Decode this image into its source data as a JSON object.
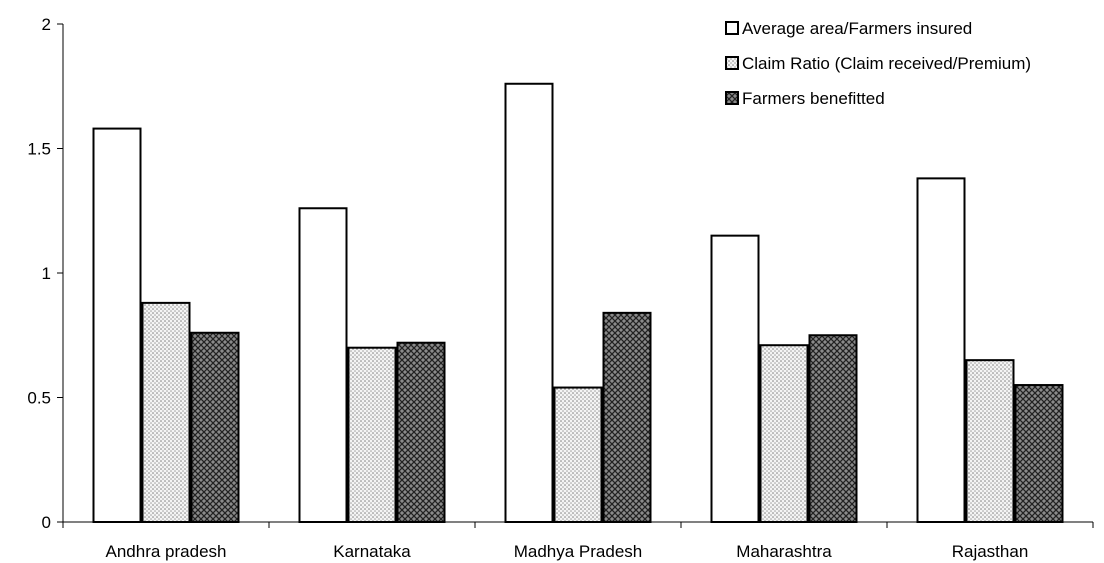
{
  "chart_data": {
    "type": "bar",
    "title": "",
    "xlabel": "",
    "ylabel": "",
    "ylim": [
      0,
      2
    ],
    "yticks": [
      "0",
      "0.5",
      "1",
      "1.5",
      "2"
    ],
    "grid": false,
    "legend_position": "top-right",
    "categories": [
      "Andhra pradesh",
      "Karnataka",
      "Madhya Pradesh",
      "Maharashtra",
      "Rajasthan"
    ],
    "series": [
      {
        "name": "Average area/Farmers insured",
        "pattern": "white",
        "values": [
          1.58,
          1.26,
          1.76,
          1.15,
          1.38
        ]
      },
      {
        "name": "Claim Ratio (Claim received/Premium)",
        "pattern": "dots",
        "values": [
          0.88,
          0.7,
          0.54,
          0.71,
          0.65
        ]
      },
      {
        "name": "Farmers benefitted",
        "pattern": "crosshatch",
        "values": [
          0.76,
          0.72,
          0.84,
          0.75,
          0.55
        ]
      }
    ]
  }
}
